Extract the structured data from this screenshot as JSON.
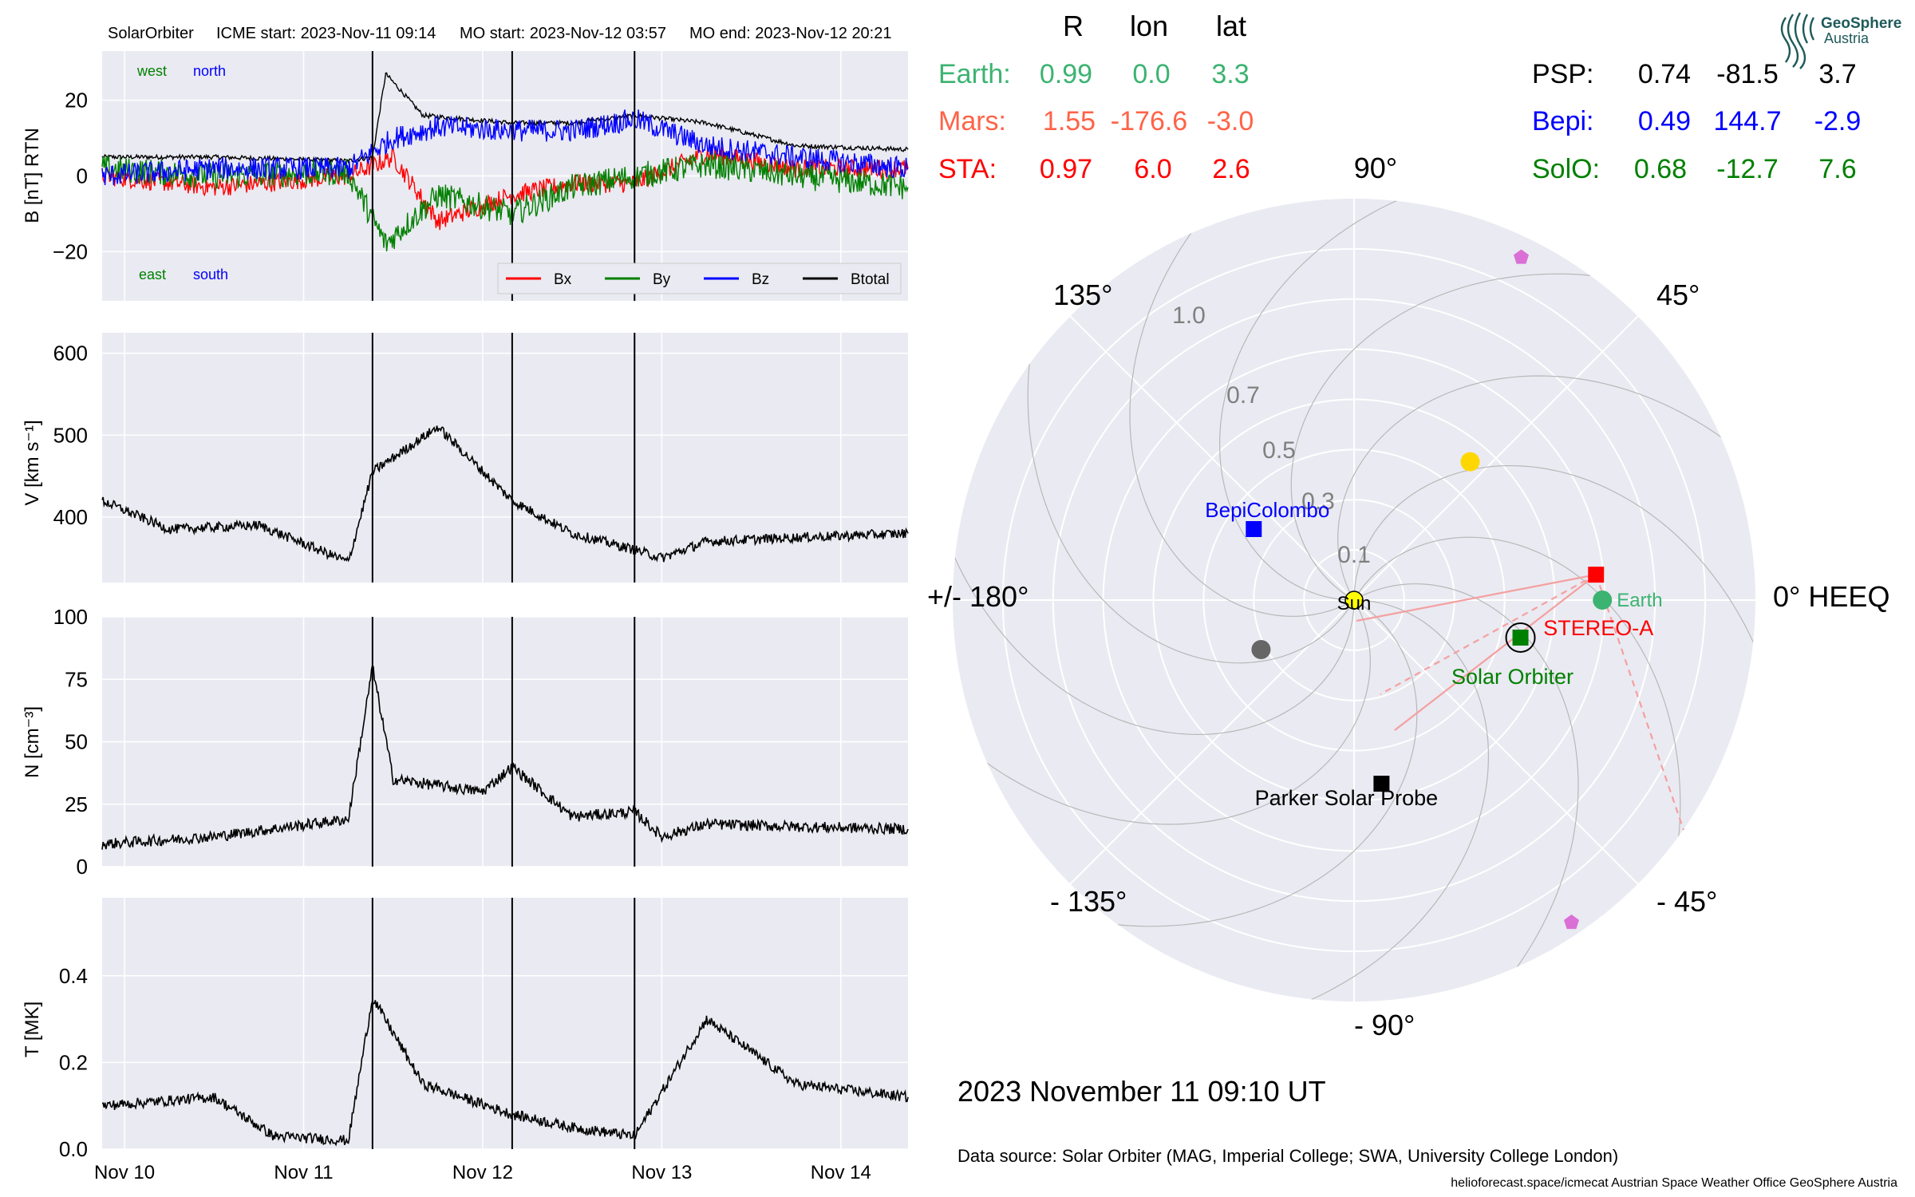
{
  "header": {
    "spacecraft": "SolarOrbiter",
    "icme_start": "ICME start: 2023-Nov-11 09:14",
    "mo_start": "MO start: 2023-Nov-12 03:57",
    "mo_end": "MO end: 2023-Nov-12 20:21"
  },
  "colors": {
    "Bx": "#ff0000",
    "By": "#008000",
    "Bz": "#0000ff",
    "Btotal": "#000000",
    "panel_bg": "#eaeaf2",
    "earth": "#3cb371",
    "mars": "#ff6347",
    "sta": "#ff0000",
    "psp": "#000000",
    "bepi": "#0000ff",
    "solo": "#008000"
  },
  "chart_data": [
    {
      "type": "line",
      "panel": "magnetic-field",
      "ylabel": "B [nT] RTN",
      "ylim": [
        -33,
        33
      ],
      "yticks": [
        "20",
        "0",
        "−20"
      ],
      "legend": [
        "Bx",
        "By",
        "Bz",
        "Btotal"
      ],
      "legend_placement": "bottom-right",
      "annotations": {
        "west": "west",
        "north": "north",
        "east": "east",
        "south": "south"
      },
      "series": [
        {
          "name": "Btotal",
          "x": [
            "2023-11-09T21:00",
            "2023-11-10T12:00",
            "2023-11-11T06:00",
            "2023-11-11T09:14",
            "2023-11-11T11:00",
            "2023-11-11T16:00",
            "2023-11-12T03:57",
            "2023-11-12T12:00",
            "2023-11-12T20:21",
            "2023-11-13T06:00",
            "2023-11-13T18:00",
            "2023-11-14T09:00"
          ],
          "values": [
            5,
            5,
            4,
            5,
            27,
            16,
            14,
            14,
            16,
            14,
            8,
            7
          ]
        },
        {
          "name": "Bx",
          "x": [
            "2023-11-09T21:00",
            "2023-11-10T12:00",
            "2023-11-11T06:00",
            "2023-11-11T12:00",
            "2023-11-11T18:00",
            "2023-11-12T03:57",
            "2023-11-12T12:00",
            "2023-11-12T20:21",
            "2023-11-13T06:00",
            "2023-11-13T18:00",
            "2023-11-14T09:00"
          ],
          "values": [
            0,
            -3,
            0,
            5,
            -12,
            -5,
            -2,
            -2,
            6,
            2,
            2
          ]
        },
        {
          "name": "By",
          "x": [
            "2023-11-09T21:00",
            "2023-11-10T12:00",
            "2023-11-11T06:00",
            "2023-11-11T11:00",
            "2023-11-11T18:00",
            "2023-11-12T03:57",
            "2023-11-12T12:00",
            "2023-11-12T20:21",
            "2023-11-13T06:00",
            "2023-11-13T18:00",
            "2023-11-14T09:00"
          ],
          "values": [
            2,
            0,
            1,
            -18,
            -5,
            -10,
            -3,
            0,
            3,
            0,
            -3
          ]
        },
        {
          "name": "Bz",
          "x": [
            "2023-11-09T21:00",
            "2023-11-10T12:00",
            "2023-11-11T06:00",
            "2023-11-11T12:00",
            "2023-11-11T18:00",
            "2023-11-12T03:57",
            "2023-11-12T12:00",
            "2023-11-12T20:21",
            "2023-11-13T06:00",
            "2023-11-13T18:00",
            "2023-11-14T09:00"
          ],
          "values": [
            0,
            2,
            2,
            10,
            13,
            12,
            12,
            15,
            8,
            5,
            2
          ]
        }
      ]
    },
    {
      "type": "line",
      "panel": "velocity",
      "ylabel": "V [km s⁻¹]",
      "ylim": [
        320,
        625
      ],
      "yticks": [
        "600",
        "500",
        "400"
      ],
      "series": [
        {
          "name": "V",
          "x": [
            "2023-11-09T21:00",
            "2023-11-10T06:00",
            "2023-11-10T18:00",
            "2023-11-11T06:00",
            "2023-11-11T09:14",
            "2023-11-11T18:00",
            "2023-11-12T03:57",
            "2023-11-12T12:00",
            "2023-11-12T20:21",
            "2023-11-13T00:00",
            "2023-11-13T06:00",
            "2023-11-13T18:00",
            "2023-11-14T09:00"
          ],
          "values": [
            420,
            385,
            390,
            345,
            455,
            510,
            420,
            380,
            360,
            350,
            370,
            375,
            380
          ]
        }
      ]
    },
    {
      "type": "line",
      "panel": "density",
      "ylabel": "N [cm⁻³]",
      "ylim": [
        0,
        100
      ],
      "yticks": [
        "100",
        "75",
        "50",
        "25",
        "0"
      ],
      "series": [
        {
          "name": "N",
          "x": [
            "2023-11-09T21:00",
            "2023-11-10T12:00",
            "2023-11-11T06:00",
            "2023-11-11T09:14",
            "2023-11-11T12:00",
            "2023-11-12T00:00",
            "2023-11-12T03:57",
            "2023-11-12T12:00",
            "2023-11-12T20:21",
            "2023-11-13T00:00",
            "2023-11-13T06:00",
            "2023-11-13T18:00",
            "2023-11-14T09:00"
          ],
          "values": [
            9,
            12,
            19,
            80,
            35,
            30,
            40,
            20,
            22,
            12,
            17,
            16,
            15
          ]
        }
      ]
    },
    {
      "type": "line",
      "panel": "temperature",
      "ylabel": "T [MK]",
      "ylim": [
        0,
        0.58
      ],
      "yticks": [
        "0.4",
        "0.2",
        "0.0"
      ],
      "xticks": [
        "Nov 10",
        "Nov 11",
        "Nov 12",
        "Nov 13",
        "Nov 14"
      ],
      "series": [
        {
          "name": "T",
          "x": [
            "2023-11-09T21:00",
            "2023-11-10T12:00",
            "2023-11-10T20:00",
            "2023-11-11T06:00",
            "2023-11-11T09:14",
            "2023-11-11T16:00",
            "2023-11-12T03:57",
            "2023-11-12T12:00",
            "2023-11-12T20:21",
            "2023-11-13T06:00",
            "2023-11-13T18:00",
            "2023-11-14T09:00"
          ],
          "values": [
            0.1,
            0.12,
            0.03,
            0.02,
            0.35,
            0.15,
            0.08,
            0.05,
            0.03,
            0.3,
            0.15,
            0.12
          ]
        }
      ]
    },
    {
      "type": "scatter",
      "panel": "polar-position",
      "rticks": [
        "0.1",
        "0.3",
        "0.5",
        "0.7",
        "1.0"
      ],
      "angle_labels": {
        "a0": "0° HEEQ",
        "a45": "45°",
        "a90": "90°",
        "a135": "135°",
        "a180": "+/- 180°",
        "am135": "- 135°",
        "am90": "- 90°",
        "am45": "- 45°"
      },
      "points": [
        {
          "name": "Sun",
          "r": 0.0,
          "lon": 0
        },
        {
          "name": "Earth",
          "r": 0.99,
          "lon": 0.0
        },
        {
          "name": "STEREO-A",
          "r": 0.97,
          "lon": 6.0
        },
        {
          "name": "Solar Orbiter",
          "r": 0.68,
          "lon": -12.7
        },
        {
          "name": "BepiColombo",
          "r": 0.49,
          "lon": 144.7
        },
        {
          "name": "Parker Solar Probe",
          "r": 0.74,
          "lon": -81.5
        },
        {
          "name": "",
          "r": 1.52,
          "lon": 64
        },
        {
          "name": "",
          "r": 1.55,
          "lon": -56
        },
        {
          "name": "",
          "r": 0.72,
          "lon": 50
        },
        {
          "name": "",
          "r": 0.42,
          "lon": -152
        }
      ]
    }
  ],
  "table": {
    "headers": {
      "R": "R",
      "lon": "lon",
      "lat": "lat"
    },
    "left": [
      {
        "label": "Earth:",
        "R": "0.99",
        "lon": "0.0",
        "lat": "3.3"
      },
      {
        "label": "Mars:",
        "R": "1.55",
        "lon": "-176.6",
        "lat": "-3.0"
      },
      {
        "label": "STA:",
        "R": "0.97",
        "lon": "6.0",
        "lat": "2.6"
      }
    ],
    "right": [
      {
        "label": "PSP:",
        "R": "0.74",
        "lon": "-81.5",
        "lat": "3.7"
      },
      {
        "label": "Bepi:",
        "R": "0.49",
        "lon": "144.7",
        "lat": "-2.9"
      },
      {
        "label": "SolO:",
        "R": "0.68",
        "lon": "-12.7",
        "lat": "7.6"
      }
    ]
  },
  "polar_labels": {
    "sun": "Sun",
    "earth": "Earth",
    "sta": "STEREO-A",
    "solo": "Solar Orbiter",
    "bepi": "BepiColombo",
    "psp": "Parker Solar Probe"
  },
  "footer": {
    "date": "2023 November 11  09:10 UT",
    "source": "Data source: Solar Orbiter (MAG, Imperial College; SWA, University College London)",
    "credits": "helioforecast.space/icmecat   Austrian Space Weather Office   GeoSphere Austria"
  },
  "logo": {
    "line1": "GeoSphere",
    "line2": "Austria"
  }
}
